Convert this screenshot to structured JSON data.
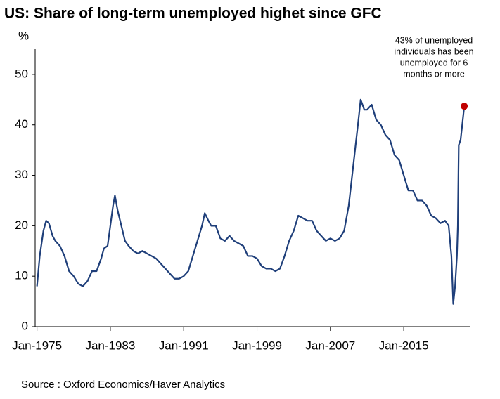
{
  "chart_data": {
    "type": "line",
    "title": "US: Share of long-term unemployed highet since GFC",
    "y_label": "%",
    "annotation": [
      "43% of unemployed",
      "individuals has been",
      "unemployed for 6",
      "months or more"
    ],
    "source": "Source : Oxford Economics/Haver Analytics",
    "xlim": [
      1974.8,
      2022.2
    ],
    "xticks": [
      {
        "value": 1975,
        "label": "Jan-1975"
      },
      {
        "value": 1983,
        "label": "Jan-1983"
      },
      {
        "value": 1991,
        "label": "Jan-1991"
      },
      {
        "value": 1999,
        "label": "Jan-1999"
      },
      {
        "value": 2007,
        "label": "Jan-2007"
      },
      {
        "value": 2015,
        "label": "Jan-2015"
      }
    ],
    "ylim": [
      0,
      55
    ],
    "yticks": [
      0,
      10,
      20,
      30,
      40,
      50
    ],
    "grid": false,
    "highlight_color": "#c00000",
    "series": [
      {
        "name": "Share of long-term unemployed",
        "color": "#1f3f7a",
        "x": [
          1975.0,
          1975.3,
          1975.7,
          1976.0,
          1976.3,
          1976.7,
          1977.0,
          1977.5,
          1978.0,
          1978.5,
          1979.0,
          1979.5,
          1980.0,
          1980.5,
          1981.0,
          1981.5,
          1982.0,
          1982.3,
          1982.7,
          1983.0,
          1983.3,
          1983.5,
          1983.8,
          1984.2,
          1984.6,
          1985.0,
          1985.5,
          1986.0,
          1986.5,
          1987.0,
          1987.5,
          1988.0,
          1988.5,
          1989.0,
          1989.5,
          1990.0,
          1990.5,
          1991.0,
          1991.5,
          1992.0,
          1992.5,
          1993.0,
          1993.3,
          1993.7,
          1994.0,
          1994.5,
          1995.0,
          1995.5,
          1996.0,
          1996.5,
          1997.0,
          1997.5,
          1998.0,
          1998.5,
          1999.0,
          1999.5,
          2000.0,
          2000.5,
          2001.0,
          2001.5,
          2002.0,
          2002.5,
          2003.0,
          2003.5,
          2004.0,
          2004.5,
          2005.0,
          2005.5,
          2006.0,
          2006.5,
          2007.0,
          2007.5,
          2008.0,
          2008.5,
          2009.0,
          2009.5,
          2010.0,
          2010.3,
          2010.7,
          2011.0,
          2011.5,
          2012.0,
          2012.5,
          2013.0,
          2013.5,
          2014.0,
          2014.5,
          2015.0,
          2015.5,
          2016.0,
          2016.5,
          2017.0,
          2017.5,
          2018.0,
          2018.5,
          2019.0,
          2019.5,
          2019.9,
          2020.2,
          2020.4,
          2020.6,
          2020.8,
          2020.9,
          2021.0,
          2021.2,
          2021.6
        ],
        "values": [
          8,
          14,
          19,
          21,
          20.5,
          18,
          17,
          16,
          14,
          11,
          10,
          8.5,
          8,
          9,
          11,
          11,
          13.5,
          15.5,
          16,
          20,
          24,
          26,
          23,
          20,
          17,
          16,
          15,
          14.5,
          15,
          14.5,
          14,
          13.5,
          12.5,
          11.5,
          10.5,
          9.5,
          9.5,
          10,
          11,
          14,
          17,
          20,
          22.5,
          21,
          20,
          20,
          17.5,
          17,
          18,
          17,
          16.5,
          16,
          14,
          14,
          13.5,
          12,
          11.5,
          11.5,
          11,
          11.5,
          14,
          17,
          19,
          22,
          21.5,
          21,
          21,
          19,
          18,
          17,
          17.5,
          17,
          17.5,
          19,
          24,
          32,
          40,
          45,
          43,
          43,
          44,
          41,
          40,
          38,
          37,
          34,
          33,
          30,
          27,
          27,
          25,
          25,
          24,
          22,
          21.5,
          20.5,
          21,
          20,
          14,
          4.5,
          8,
          14,
          20,
          36,
          37,
          43.7
        ]
      }
    ]
  }
}
